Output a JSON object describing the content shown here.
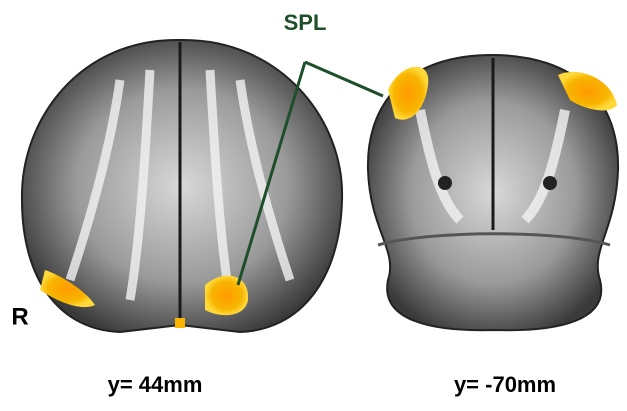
{
  "labels": {
    "annotation": "SPL",
    "side": "R"
  },
  "panels": [
    {
      "caption": "y= 44mm"
    },
    {
      "caption": "y= -70mm"
    }
  ]
}
